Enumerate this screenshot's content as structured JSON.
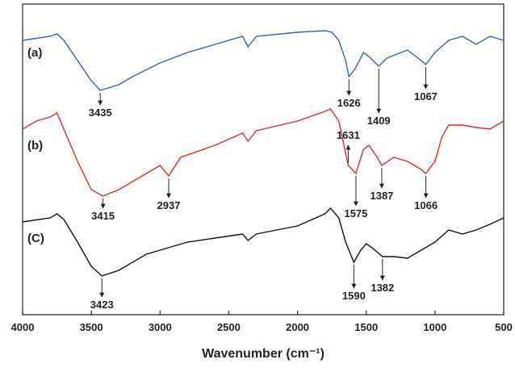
{
  "chart_data": {
    "type": "line",
    "xlabel": "Wavenumber (cm⁻¹)",
    "xlim": [
      4000,
      500
    ],
    "xticks": [
      4000,
      3500,
      3000,
      2500,
      2000,
      1500,
      1000,
      500
    ],
    "ylim": [
      0,
      385
    ],
    "series": [
      {
        "name": "(a)",
        "color": "#3a5fb0",
        "x": [
          4000,
          3800,
          3750,
          3700,
          3600,
          3500,
          3435,
          3300,
          3200,
          3000,
          2800,
          2600,
          2400,
          2360,
          2300,
          2000,
          1800,
          1750,
          1700,
          1650,
          1626,
          1580,
          1520,
          1480,
          1409,
          1350,
          1200,
          1100,
          1067,
          1000,
          900,
          800,
          700,
          600,
          500
        ],
        "values": [
          340,
          345,
          348,
          340,
          315,
          290,
          278,
          285,
          295,
          312,
          325,
          335,
          345,
          332,
          345,
          350,
          352,
          350,
          340,
          315,
          295,
          305,
          325,
          320,
          308,
          318,
          328,
          315,
          310,
          325,
          340,
          345,
          335,
          345,
          340
        ],
        "peaks": [
          3435,
          1626,
          1409,
          1067
        ]
      },
      {
        "name": "(b)",
        "color": "#e02a2a",
        "x": [
          4000,
          3900,
          3800,
          3750,
          3700,
          3600,
          3500,
          3415,
          3300,
          3100,
          3000,
          2937,
          2850,
          2600,
          2400,
          2360,
          2300,
          2000,
          1800,
          1760,
          1700,
          1650,
          1631,
          1575,
          1520,
          1480,
          1420,
          1387,
          1300,
          1200,
          1100,
          1066,
          1000,
          950,
          900,
          800,
          700,
          600,
          500
        ],
        "values": [
          230,
          240,
          245,
          250,
          230,
          190,
          155,
          147,
          155,
          175,
          185,
          172,
          195,
          210,
          225,
          215,
          228,
          240,
          252,
          255,
          240,
          200,
          185,
          175,
          205,
          210,
          195,
          185,
          195,
          190,
          180,
          175,
          190,
          220,
          235,
          235,
          232,
          230,
          240
        ],
        "peaks": [
          3415,
          2937,
          1631,
          1575,
          1387,
          1066
        ]
      },
      {
        "name": "(C)",
        "color": "#111111",
        "x": [
          4000,
          3800,
          3750,
          3700,
          3600,
          3500,
          3423,
          3300,
          3100,
          3000,
          2800,
          2600,
          2400,
          2360,
          2300,
          2000,
          1800,
          1760,
          1700,
          1650,
          1590,
          1540,
          1500,
          1450,
          1382,
          1300,
          1200,
          1100,
          1000,
          900,
          800,
          700,
          600,
          500
        ],
        "values": [
          115,
          120,
          125,
          118,
          90,
          60,
          48,
          55,
          75,
          80,
          90,
          95,
          100,
          92,
          100,
          110,
          125,
          132,
          120,
          90,
          65,
          80,
          88,
          82,
          72,
          72,
          70,
          80,
          90,
          105,
          100,
          105,
          112,
          120
        ],
        "peaks": [
          3423,
          1590,
          1382
        ]
      }
    ]
  }
}
